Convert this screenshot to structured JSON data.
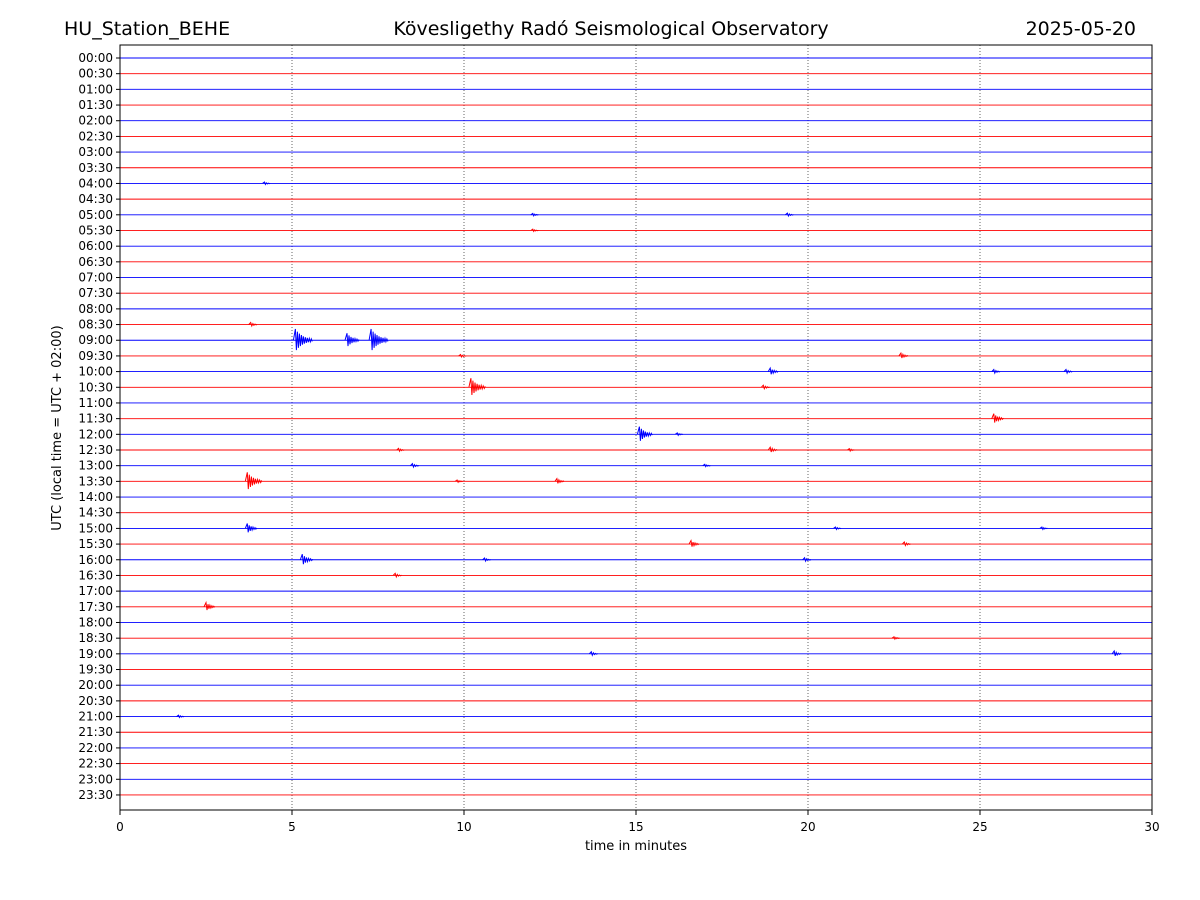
{
  "header": {
    "station": "HU_Station_BEHE",
    "observatory": "Kövesligethy Radó Seismological Observatory",
    "date": "2025-05-20"
  },
  "chart_data": {
    "type": "line",
    "title": "Kövesligethy Radó Seismological Observatory",
    "xlabel": "time in minutes",
    "ylabel": "UTC (local time = UTC + 02:00)",
    "xlim": [
      0,
      30
    ],
    "x_ticks": [
      0,
      5,
      10,
      15,
      20,
      25,
      30
    ],
    "grid": "vertical dotted at x ticks",
    "row_colors": [
      "#0000ff",
      "#ff0000"
    ],
    "rows": [
      "00:00",
      "00:30",
      "01:00",
      "01:30",
      "02:00",
      "02:30",
      "03:00",
      "03:30",
      "04:00",
      "04:30",
      "05:00",
      "05:30",
      "06:00",
      "06:30",
      "07:00",
      "07:30",
      "08:00",
      "08:30",
      "09:00",
      "09:30",
      "10:00",
      "10:30",
      "11:00",
      "11:30",
      "12:00",
      "12:30",
      "13:00",
      "13:30",
      "14:00",
      "14:30",
      "15:00",
      "15:30",
      "16:00",
      "16:30",
      "17:00",
      "17:30",
      "18:00",
      "18:30",
      "19:00",
      "19:30",
      "20:00",
      "20:30",
      "21:00",
      "21:30",
      "22:00",
      "22:30",
      "23:00",
      "23:30"
    ],
    "events": [
      {
        "row": "04:00",
        "t": 4.2,
        "amp": 0.2
      },
      {
        "row": "05:00",
        "t": 12.0,
        "amp": 0.2
      },
      {
        "row": "05:00",
        "t": 19.4,
        "amp": 0.25
      },
      {
        "row": "05:30",
        "t": 12.0,
        "amp": 0.2
      },
      {
        "row": "08:30",
        "t": 3.8,
        "amp": 0.3
      },
      {
        "row": "09:00",
        "t": 5.1,
        "amp": 1.6
      },
      {
        "row": "09:00",
        "t": 6.6,
        "amp": 1.0
      },
      {
        "row": "09:00",
        "t": 7.3,
        "amp": 1.6
      },
      {
        "row": "09:30",
        "t": 9.9,
        "amp": 0.2
      },
      {
        "row": "09:30",
        "t": 22.7,
        "amp": 0.4
      },
      {
        "row": "10:00",
        "t": 18.9,
        "amp": 0.5
      },
      {
        "row": "10:00",
        "t": 25.4,
        "amp": 0.3
      },
      {
        "row": "10:00",
        "t": 27.5,
        "amp": 0.3
      },
      {
        "row": "10:30",
        "t": 10.2,
        "amp": 1.3
      },
      {
        "row": "10:30",
        "t": 18.7,
        "amp": 0.3
      },
      {
        "row": "11:30",
        "t": 25.4,
        "amp": 0.7
      },
      {
        "row": "12:00",
        "t": 15.1,
        "amp": 1.1
      },
      {
        "row": "12:00",
        "t": 16.2,
        "amp": 0.2
      },
      {
        "row": "12:30",
        "t": 8.1,
        "amp": 0.25
      },
      {
        "row": "12:30",
        "t": 18.9,
        "amp": 0.4
      },
      {
        "row": "12:30",
        "t": 21.2,
        "amp": 0.2
      },
      {
        "row": "13:00",
        "t": 8.5,
        "amp": 0.3
      },
      {
        "row": "13:00",
        "t": 17.0,
        "amp": 0.2
      },
      {
        "row": "13:30",
        "t": 3.7,
        "amp": 1.3
      },
      {
        "row": "13:30",
        "t": 9.8,
        "amp": 0.2
      },
      {
        "row": "13:30",
        "t": 12.7,
        "amp": 0.4
      },
      {
        "row": "15:00",
        "t": 3.7,
        "amp": 0.7
      },
      {
        "row": "15:00",
        "t": 20.8,
        "amp": 0.2
      },
      {
        "row": "15:00",
        "t": 26.8,
        "amp": 0.2
      },
      {
        "row": "15:30",
        "t": 16.6,
        "amp": 0.5
      },
      {
        "row": "15:30",
        "t": 22.8,
        "amp": 0.3
      },
      {
        "row": "16:00",
        "t": 5.3,
        "amp": 0.8
      },
      {
        "row": "16:00",
        "t": 10.6,
        "amp": 0.25
      },
      {
        "row": "16:00",
        "t": 19.9,
        "amp": 0.3
      },
      {
        "row": "16:30",
        "t": 8.0,
        "amp": 0.3
      },
      {
        "row": "17:30",
        "t": 2.5,
        "amp": 0.6
      },
      {
        "row": "18:30",
        "t": 22.5,
        "amp": 0.2
      },
      {
        "row": "19:00",
        "t": 13.7,
        "amp": 0.3
      },
      {
        "row": "19:00",
        "t": 28.9,
        "amp": 0.4
      },
      {
        "row": "21:00",
        "t": 1.7,
        "amp": 0.2
      }
    ]
  }
}
